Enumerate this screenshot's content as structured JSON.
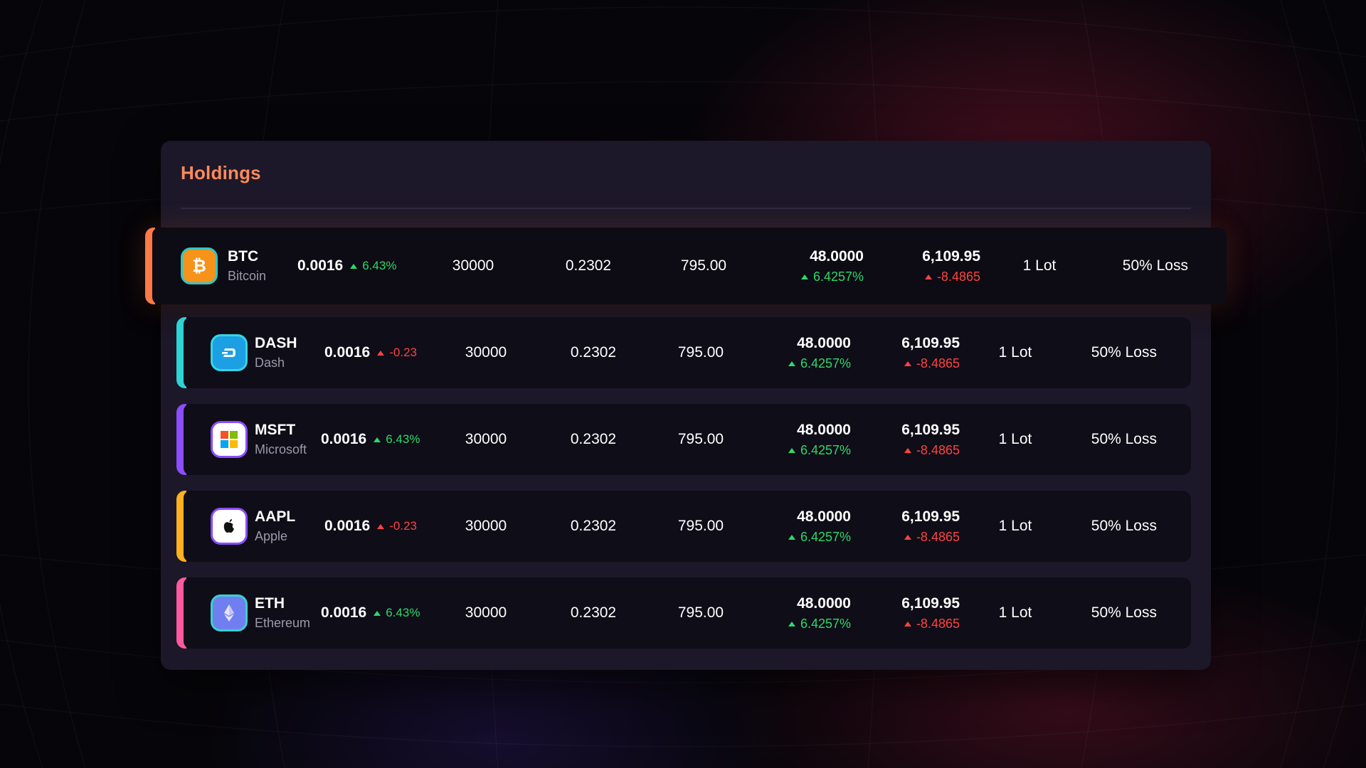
{
  "panel": {
    "title": "Holdings"
  },
  "colors": {
    "title": "#ff8a5b",
    "positive": "#2bd96b",
    "negative": "#ff4242"
  },
  "rows": [
    {
      "ticker": "BTC",
      "name": "Bitcoin",
      "icon": "bitcoin-icon",
      "accent": "#ff7a45",
      "iconBg": "#f7931a",
      "price": "0.0016",
      "change": "6.43%",
      "changeDir": "up",
      "qty": "30000",
      "avg": "0.2302",
      "value": "795.00",
      "pnl": "48.0000",
      "pnlPct": "6.4257%",
      "pnlDir": "up",
      "total": "6,109.95",
      "totalChg": "-8.4865",
      "totalDir": "down",
      "lot": "1 Lot",
      "status": "50% Loss"
    },
    {
      "ticker": "DASH",
      "name": "Dash",
      "icon": "dash-icon",
      "accent": "#2ed3d3",
      "iconBg": "#1c9fe3",
      "price": "0.0016",
      "change": "-0.23",
      "changeDir": "down",
      "qty": "30000",
      "avg": "0.2302",
      "value": "795.00",
      "pnl": "48.0000",
      "pnlPct": "6.4257%",
      "pnlDir": "up",
      "total": "6,109.95",
      "totalChg": "-8.4865",
      "totalDir": "down",
      "lot": "1 Lot",
      "status": "50% Loss"
    },
    {
      "ticker": "MSFT",
      "name": "Microsoft",
      "icon": "microsoft-icon",
      "accent": "#8a4dff",
      "iconBg": "#ffffff",
      "price": "0.0016",
      "change": "6.43%",
      "changeDir": "up",
      "qty": "30000",
      "avg": "0.2302",
      "value": "795.00",
      "pnl": "48.0000",
      "pnlPct": "6.4257%",
      "pnlDir": "up",
      "total": "6,109.95",
      "totalChg": "-8.4865",
      "totalDir": "down",
      "lot": "1 Lot",
      "status": "50% Loss"
    },
    {
      "ticker": "AAPL",
      "name": "Apple",
      "icon": "apple-icon",
      "accent": "#ffb020",
      "iconBg": "#ffffff",
      "price": "0.0016",
      "change": "-0.23",
      "changeDir": "down",
      "qty": "30000",
      "avg": "0.2302",
      "value": "795.00",
      "pnl": "48.0000",
      "pnlPct": "6.4257%",
      "pnlDir": "up",
      "total": "6,109.95",
      "totalChg": "-8.4865",
      "totalDir": "down",
      "lot": "1 Lot",
      "status": "50% Loss"
    },
    {
      "ticker": "ETH",
      "name": "Ethereum",
      "icon": "ethereum-icon",
      "accent": "#ff5aa0",
      "iconBg": "#6f7ff0",
      "price": "0.0016",
      "change": "6.43%",
      "changeDir": "up",
      "qty": "30000",
      "avg": "0.2302",
      "value": "795.00",
      "pnl": "48.0000",
      "pnlPct": "6.4257%",
      "pnlDir": "up",
      "total": "6,109.95",
      "totalChg": "-8.4865",
      "totalDir": "down",
      "lot": "1 Lot",
      "status": "50% Loss"
    }
  ]
}
